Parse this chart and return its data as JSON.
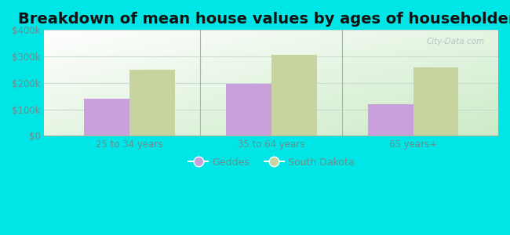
{
  "title": "Breakdown of mean house values by ages of householders",
  "categories": [
    "25 to 34 years",
    "35 to 64 years",
    "65 years+"
  ],
  "geddes_values": [
    140000,
    197000,
    120000
  ],
  "sd_values": [
    250000,
    305000,
    260000
  ],
  "geddes_color": "#c9a0dc",
  "sd_color": "#c8d4a0",
  "ylim": [
    0,
    400000
  ],
  "yticks": [
    0,
    100000,
    200000,
    300000,
    400000
  ],
  "ytick_labels": [
    "$0",
    "$100k",
    "$200k",
    "$300k",
    "$400k"
  ],
  "legend_labels": [
    "Geddes",
    "South Dakota"
  ],
  "background_outer": "#00e5e5",
  "title_fontsize": 14,
  "bar_width": 0.32,
  "watermark": "City-Data.com",
  "tick_color": "#6b8e8e",
  "grid_color": "#c8ddd0",
  "separator_color": "#a0b8a0"
}
